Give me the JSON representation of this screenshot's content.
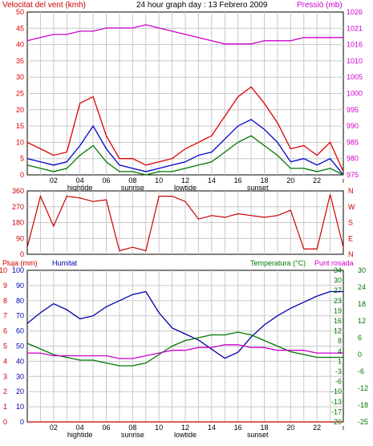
{
  "header": {
    "left_label": "Velocitat del vent (kmh)",
    "center_title": "24 hour graph day : 13 Febrero 2009",
    "right_label": "Pressió (mb)"
  },
  "colors": {
    "wind": "#dd0000",
    "wind_avg": "#0000cc",
    "wind_min": "#007700",
    "pressure": "#cc00cc",
    "direction": "#cc0000",
    "humidity": "#0000aa",
    "temperature": "#007700",
    "dewpoint": "#cc00cc",
    "rain": "#cc0000",
    "grid": "#c8c8c8",
    "axis": "#000000"
  },
  "panel1": {
    "wind_ticks": [
      "50",
      "45",
      "40",
      "35",
      "30",
      "25",
      "20",
      "15",
      "10",
      "5",
      "0"
    ],
    "pressure_ticks": [
      "1026",
      "1021",
      "1016",
      "1010",
      "1005",
      "1000",
      "995",
      "990",
      "985",
      "980",
      "975"
    ]
  },
  "panel2": {
    "deg_ticks": [
      "360",
      "270",
      "180",
      "90",
      "0"
    ],
    "dir_ticks": [
      "N",
      "W",
      "S",
      "E",
      "N"
    ]
  },
  "panel3": {
    "labels": {
      "rain": "Pluja (mm)",
      "humidity": "Humitat",
      "temperature": "Temperatura (°C)",
      "dewpoint": "Punt rosada"
    },
    "rain_ticks": [
      "10",
      "9",
      "8",
      "7",
      "6",
      "5",
      "4",
      "3",
      "2",
      "1",
      "0"
    ],
    "humidity_ticks": [
      "100",
      "90",
      "80",
      "70",
      "60",
      "50",
      "40",
      "30",
      "20",
      "10",
      "0"
    ],
    "temp_ticks": [
      "34",
      "30",
      "27",
      "23",
      "19",
      "16",
      "12",
      "8",
      "4",
      "1",
      "-3",
      "-6",
      "-10",
      "-13",
      "-17",
      "-20"
    ],
    "dew_ticks": [
      "30",
      "24",
      "18",
      "12",
      "6",
      "0",
      "-6",
      "-12",
      "-18",
      "-25"
    ]
  },
  "time_axis": {
    "hour_labels": [
      "02",
      "04",
      "06",
      "08",
      "10",
      "12",
      "14",
      "16",
      "18",
      "20",
      "22"
    ],
    "event_labels": [
      "hightide",
      "sunrise",
      "lowtide",
      "sunset"
    ]
  },
  "chart_data": [
    {
      "type": "line",
      "title": "24 hour graph day : 13 Febrero 2009",
      "xlabel": "",
      "ylabel": "Velocitat del vent (kmh)",
      "ylim": [
        0,
        50
      ],
      "y2label": "Pressió (mb)",
      "y2lim": [
        975,
        1026
      ],
      "x": [
        0,
        1,
        2,
        3,
        4,
        5,
        6,
        7,
        8,
        9,
        10,
        11,
        12,
        13,
        14,
        15,
        16,
        17,
        18,
        19,
        20,
        21,
        22,
        23,
        24
      ],
      "series": [
        {
          "name": "",
          "axis": "left",
          "values": [
            10,
            8,
            6,
            7,
            22,
            24,
            12,
            5,
            5,
            3,
            4,
            5,
            8,
            10,
            12,
            18,
            24,
            27,
            22,
            16,
            8,
            9,
            6,
            10,
            1
          ]
        },
        {
          "name": "",
          "axis": "left",
          "values": [
            5,
            4,
            3,
            4,
            9,
            15,
            8,
            3,
            2,
            1,
            2,
            3,
            4,
            6,
            7,
            11,
            15,
            17,
            14,
            10,
            4,
            5,
            3,
            5,
            0
          ]
        },
        {
          "name": "",
          "axis": "left",
          "values": [
            3,
            2,
            1,
            2,
            6,
            9,
            4,
            1,
            1,
            0,
            1,
            1,
            2,
            3,
            4,
            7,
            10,
            12,
            9,
            6,
            2,
            2,
            1,
            2,
            0
          ]
        },
        {
          "name": "Pressió (mb)",
          "axis": "right",
          "values": [
            1017,
            1018,
            1019,
            1019,
            1020,
            1020,
            1021,
            1021,
            1021,
            1022,
            1021,
            1020,
            1019,
            1018,
            1017,
            1016,
            1016,
            1016,
            1017,
            1017,
            1017,
            1018,
            1018,
            1018,
            1018
          ]
        }
      ]
    },
    {
      "type": "line",
      "xlabel": "",
      "ylabel": "",
      "ylim": [
        0,
        360
      ],
      "x": [
        0,
        1,
        2,
        3,
        4,
        5,
        6,
        7,
        8,
        9,
        10,
        11,
        12,
        13,
        14,
        15,
        16,
        17,
        18,
        19,
        20,
        21,
        22,
        23,
        24
      ],
      "series": [
        {
          "name": "",
          "values": [
            40,
            330,
            160,
            330,
            320,
            300,
            310,
            20,
            40,
            20,
            330,
            330,
            300,
            200,
            220,
            210,
            230,
            220,
            210,
            220,
            250,
            30,
            30,
            340,
            40
          ]
        }
      ]
    },
    {
      "type": "line",
      "xlabel": "",
      "ylabel": "Humitat",
      "ylim": [
        0,
        100
      ],
      "x": [
        0,
        1,
        2,
        3,
        4,
        5,
        6,
        7,
        8,
        9,
        10,
        11,
        12,
        13,
        14,
        15,
        16,
        17,
        18,
        19,
        20,
        21,
        22,
        23,
        24
      ],
      "series": [
        {
          "name": "Humitat",
          "axis": "humidity",
          "values": [
            65,
            72,
            78,
            74,
            68,
            70,
            76,
            80,
            84,
            86,
            72,
            62,
            58,
            54,
            48,
            42,
            46,
            56,
            64,
            70,
            75,
            79,
            83,
            86,
            86
          ]
        },
        {
          "name": "Temperatura (°C)",
          "axis": "temperature",
          "values": [
            8,
            6,
            4,
            3,
            2,
            2,
            1,
            0,
            0,
            1,
            4,
            7,
            9,
            10,
            11,
            11,
            12,
            11,
            9,
            7,
            5,
            4,
            3,
            3,
            3
          ]
        },
        {
          "name": "Punt rosada",
          "axis": "dewpoint",
          "values": [
            0,
            0,
            -1,
            -1,
            -1,
            -1,
            -1,
            -2,
            -2,
            -1,
            0,
            1,
            1,
            2,
            2,
            3,
            3,
            2,
            2,
            1,
            1,
            1,
            0,
            0,
            0
          ]
        },
        {
          "name": "Pluja (mm)",
          "axis": "rain",
          "values": [
            0,
            0,
            0,
            0,
            0,
            0,
            0,
            0,
            0,
            0,
            0,
            0,
            0,
            0,
            0,
            0,
            0,
            0,
            0,
            0,
            0,
            0,
            0,
            0,
            0
          ]
        }
      ],
      "temp_lim": [
        -20,
        34
      ],
      "dew_lim": [
        -25,
        30
      ],
      "rain_lim": [
        0,
        10
      ]
    }
  ]
}
